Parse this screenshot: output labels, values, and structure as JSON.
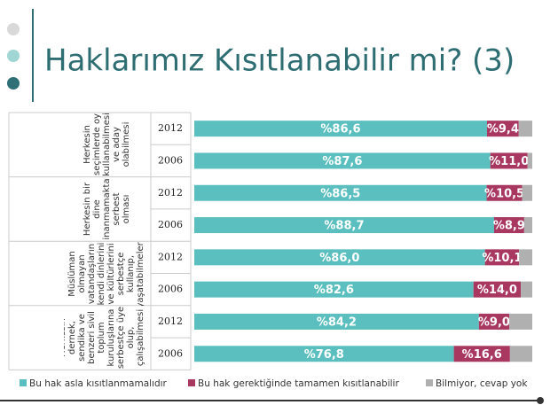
{
  "chart_data": {
    "type": "bar",
    "orientation": "horizontal",
    "stacked": true,
    "title": "Haklarımız Kısıtlanabilir mi? (3)",
    "groups": [
      "Herkesin seçimlerde oy kullanabilmesi ve aday olabilmesi",
      "Herkesin bir dine inanmamakta serbest olması",
      "Müslüman olmayan vatandaşların kendi dinlerini ve kültürlerini serbestçe kullanıp, yaşatabilmeleri",
      "Herkesin dernek, sendika ve benzeri sivil toplum kuruluşlarına serbestçe üye olup, çalışabilmesi ..."
    ],
    "categories": [
      "2012",
      "2006",
      "2012",
      "2006",
      "2012",
      "2006",
      "2012",
      "2006"
    ],
    "xlim": [
      0,
      100
    ],
    "legend": "bottom",
    "series": [
      {
        "name": "Bu hak asla kısıtlanmamalıdır",
        "color": "#5bbfbf",
        "values": [
          86.6,
          87.6,
          86.5,
          88.7,
          86.0,
          82.6,
          84.2,
          76.8
        ],
        "value_labels": [
          "%86,6",
          "%87,6",
          "%86,5",
          "%88,7",
          "%86,0",
          "%82,6",
          "%84,2",
          "%76,8"
        ]
      },
      {
        "name": "Bu hak gerektiğinde tamamen kısıtlanabilir",
        "color": "#a8385f",
        "values": [
          9.4,
          11.0,
          10.5,
          8.9,
          10.1,
          14.0,
          9.0,
          16.6
        ],
        "value_labels": [
          "%9,4",
          "%11,0",
          "%10,5",
          "%8,9",
          "%10,1",
          "%14,0",
          "%9,0",
          "%16,6"
        ]
      },
      {
        "name": "Bilmiyor, cevap yok",
        "color": "#b0b0b0",
        "values": [
          4.0,
          1.4,
          3.0,
          2.4,
          3.9,
          3.4,
          6.8,
          6.6
        ]
      }
    ]
  }
}
